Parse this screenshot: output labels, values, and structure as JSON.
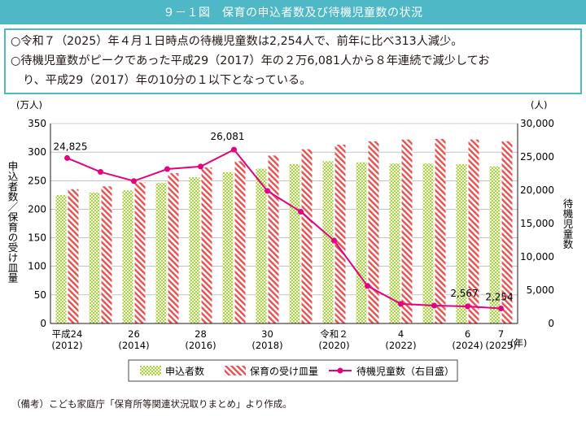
{
  "figure": {
    "title": "９－１図　保育の申込者数及び待機児童数の状況"
  },
  "summary": {
    "bullet": "○",
    "line1": "令和７（2025）年４月１日時点の待機児童数は2,254人で、前年に比べ313人減少。",
    "line2": "待機児童数がピークであった平成29（2017）年の２万6,081人から８年連続で減少してお",
    "line3": "り、平成29（2017）年の10分の１以下となっている。"
  },
  "chart_data": {
    "type": "bar",
    "x": [
      2012,
      2013,
      2014,
      2015,
      2016,
      2017,
      2018,
      2019,
      2020,
      2021,
      2022,
      2023,
      2024,
      2025
    ],
    "x_tick_labels": [
      {
        "index": 0,
        "era": "平成24",
        "year": "(2012)"
      },
      {
        "index": 2,
        "era": "26",
        "year": "(2014)"
      },
      {
        "index": 4,
        "era": "28",
        "year": "(2016)"
      },
      {
        "index": 6,
        "era": "30",
        "year": "(2018)"
      },
      {
        "index": 8,
        "era": "令和２",
        "year": "(2020)"
      },
      {
        "index": 10,
        "era": "4",
        "year": "(2022)"
      },
      {
        "index": 12,
        "era": "6",
        "year": "(2024)"
      },
      {
        "index": 13,
        "era": "7",
        "year": "(2025)"
      }
    ],
    "x_unit": "(年)",
    "series": [
      {
        "name": "申込者数",
        "axis": "left",
        "kind": "bar",
        "color": "#a8cf45",
        "values": [
          225,
          229,
          233,
          246,
          256,
          265,
          271,
          279,
          284,
          282,
          280,
          280,
          279,
          275
        ]
      },
      {
        "name": "保育の受け皿量",
        "axis": "left",
        "kind": "bar",
        "color": "#e8504f",
        "values": [
          235,
          240,
          247,
          263,
          273,
          284,
          294,
          305,
          313,
          319,
          322,
          323,
          322,
          319
        ]
      },
      {
        "name": "待機児童数（右目盛）",
        "axis": "right",
        "kind": "line",
        "color": "#e4007f",
        "values": [
          24825,
          22741,
          21371,
          23167,
          23553,
          26081,
          19895,
          16772,
          12439,
          5634,
          2944,
          2680,
          2567,
          2254
        ]
      }
    ],
    "data_labels": [
      {
        "series": 2,
        "index": 0,
        "text": "24,825"
      },
      {
        "series": 2,
        "index": 5,
        "text": "26,081"
      },
      {
        "series": 2,
        "index": 12,
        "text": "2,567"
      },
      {
        "series": 2,
        "index": 13,
        "text": "2,254"
      }
    ],
    "y_left": {
      "unit": "(万人)",
      "label": "申込者数／保育の受け皿量",
      "ylim": [
        0,
        350
      ],
      "ticks": [
        "0",
        "50",
        "100",
        "150",
        "200",
        "250",
        "300",
        "350"
      ]
    },
    "y_right": {
      "unit": "(人)",
      "label": "待機児童数",
      "ylim": [
        0,
        30000
      ],
      "ticks": [
        "0",
        "5,000",
        "10,000",
        "15,000",
        "20,000",
        "25,000",
        "30,000"
      ]
    },
    "grid": "horizontal",
    "legend_position": "bottom",
    "legend": [
      "申込者数",
      "保育の受け皿量",
      "待機児童数（右目盛）"
    ]
  },
  "footnote": "（備考）こども家庭庁「保育所等関連状況取りまとめ」より作成。"
}
